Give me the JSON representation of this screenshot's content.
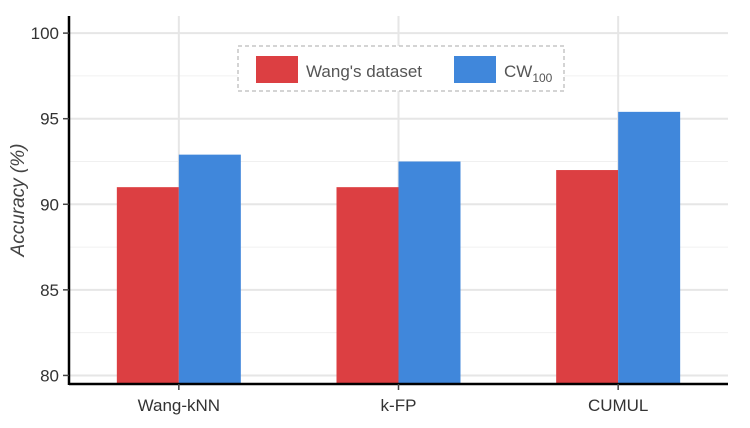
{
  "chart_data": {
    "type": "bar",
    "categories": [
      "Wang-kNN",
      "k-FP",
      "CUMUL"
    ],
    "series": [
      {
        "name": "Wang's dataset",
        "values": [
          91.0,
          91.0,
          92.0
        ],
        "color": "#dc3f42"
      },
      {
        "name": "CW",
        "name_subscript": "100",
        "values": [
          92.9,
          92.5,
          95.4
        ],
        "color": "#4087db"
      }
    ],
    "title": "",
    "xlabel": "",
    "ylabel": "Accuracy (%)",
    "ylim": [
      79.5,
      101
    ],
    "yticks": [
      "80",
      "85",
      "90",
      "95",
      "100"
    ],
    "grid": true,
    "legend_position": "top-center"
  }
}
